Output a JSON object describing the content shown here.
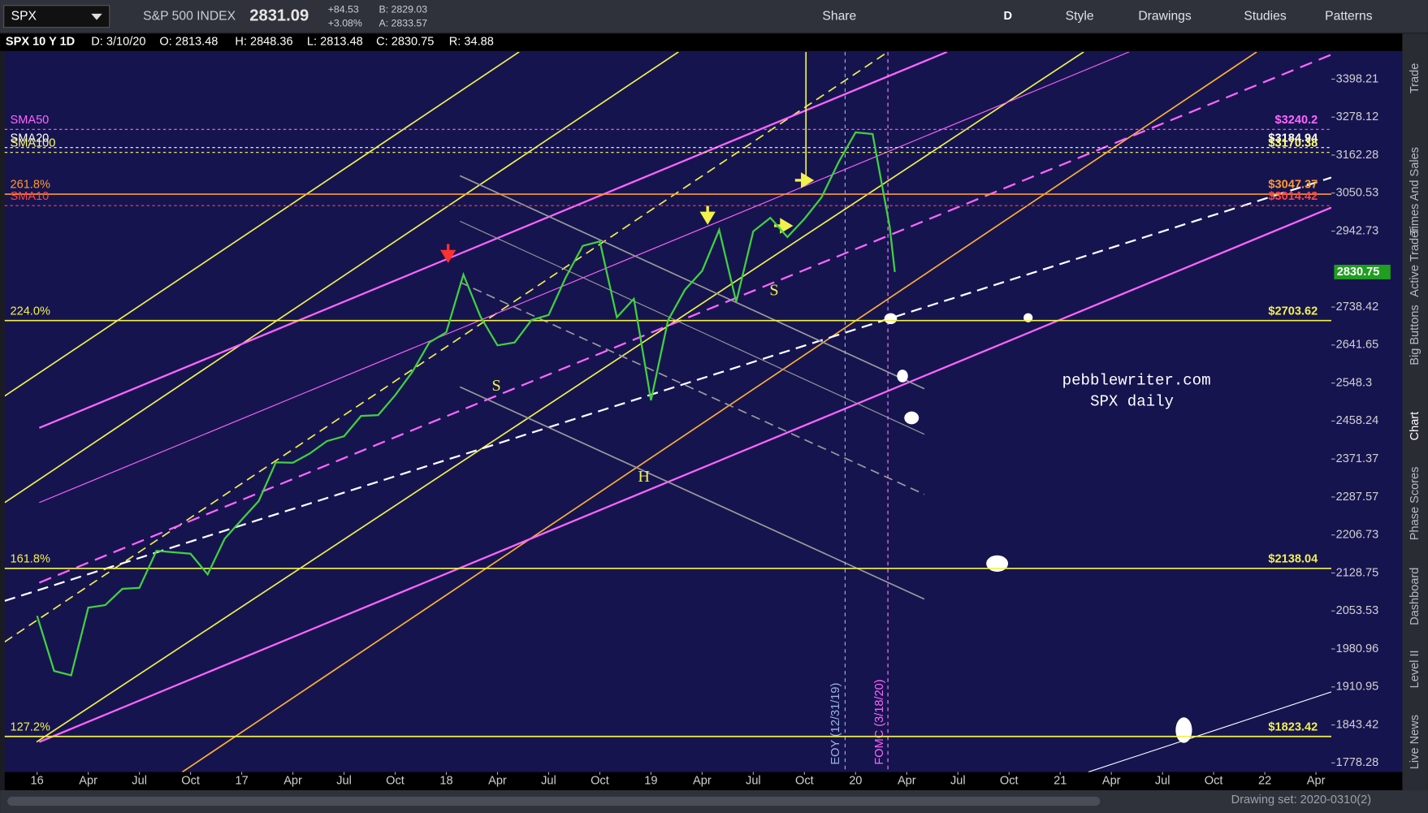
{
  "toolbar": {
    "symbol": "SPX",
    "description": "S&P 500 INDEX",
    "last": "2831.09",
    "net_change": "+84.53",
    "percent_change": "+3.08%",
    "bid": "B: 2829.03",
    "ask": "A: 2833.57",
    "aggregation": "D",
    "buttons": [
      "Share",
      "Style",
      "Drawings",
      "Studies",
      "Patterns"
    ]
  },
  "chart_header": {
    "title": "SPX 10 Y 1D",
    "date": "D: 3/10/20",
    "open": "O: 2813.48",
    "high": "H: 2848.36",
    "low": "L: 2813.48",
    "close": "C: 2830.75",
    "range": "R: 34.88"
  },
  "chart_data": {
    "type": "line",
    "log_scale": true,
    "color": "#3fd23f",
    "x": [
      0,
      1,
      2,
      3,
      4,
      5,
      6,
      7,
      8,
      9,
      10,
      11,
      12,
      13,
      14,
      15,
      16,
      17,
      18,
      19,
      20,
      21,
      22,
      23,
      24,
      25,
      26,
      27,
      28,
      29,
      30,
      31,
      32,
      33,
      34,
      35,
      36,
      37,
      38,
      39,
      40,
      41,
      42,
      43,
      44,
      45,
      46,
      47,
      48,
      49,
      50,
      50.3
    ],
    "values": [
      2044,
      1940,
      1932,
      2060,
      2065,
      2097,
      2099,
      2174,
      2171,
      2168,
      2126,
      2199,
      2239,
      2279,
      2364,
      2363,
      2384,
      2412,
      2423,
      2470,
      2472,
      2519,
      2575,
      2648,
      2674,
      2824,
      2714,
      2641,
      2648,
      2705,
      2718,
      2816,
      2902,
      2914,
      2712,
      2760,
      2507,
      2704,
      2784,
      2834,
      2946,
      2752,
      2942,
      2980,
      2926,
      2977,
      3038,
      3141,
      3231,
      3226,
      2954,
      2831
    ],
    "xlim": [
      -1.9,
      75.9
    ],
    "xticks": [
      {
        "value": 0,
        "label": "16"
      },
      {
        "value": 3,
        "label": "Apr"
      },
      {
        "value": 6,
        "label": "Jul"
      },
      {
        "value": 9,
        "label": "Oct"
      },
      {
        "value": 12,
        "label": "17"
      },
      {
        "value": 15,
        "label": "Apr"
      },
      {
        "value": 18,
        "label": "Jul"
      },
      {
        "value": 21,
        "label": "Oct"
      },
      {
        "value": 24,
        "label": "18"
      },
      {
        "value": 27,
        "label": "Apr"
      },
      {
        "value": 30,
        "label": "Jul"
      },
      {
        "value": 33,
        "label": "Oct"
      },
      {
        "value": 36,
        "label": "19"
      },
      {
        "value": 39,
        "label": "Apr"
      },
      {
        "value": 42,
        "label": "Jul"
      },
      {
        "value": 45,
        "label": "Oct"
      },
      {
        "value": 48,
        "label": "20"
      },
      {
        "value": 51,
        "label": "Apr"
      },
      {
        "value": 54,
        "label": "Jul"
      },
      {
        "value": 57,
        "label": "Oct"
      },
      {
        "value": 60,
        "label": "21"
      },
      {
        "value": 63,
        "label": "Apr"
      },
      {
        "value": 66,
        "label": "Jul"
      },
      {
        "value": 69,
        "label": "Oct"
      },
      {
        "value": 72,
        "label": "22"
      },
      {
        "value": 75,
        "label": "Apr"
      }
    ],
    "ylim": [
      1763,
      3487
    ],
    "yticks": [
      3398.21,
      3278.12,
      3162.28,
      3050.53,
      2942.73,
      2738.42,
      2641.65,
      2548.3,
      2458.24,
      2371.37,
      2287.57,
      2206.73,
      2128.75,
      2053.53,
      1980.96,
      1910.95,
      1843.42,
      1778.28
    ],
    "current_price": 2830.75,
    "levels": [
      {
        "name": "SMA50",
        "value": 3240.2,
        "label": "$3240.2",
        "color": "#ff66ff",
        "style": "dotted"
      },
      {
        "name": "SMA20",
        "value": 3184.94,
        "label": "$3184.94",
        "color": "#ffffff",
        "style": "dotted"
      },
      {
        "name": "SMA100",
        "value": 3170.38,
        "label": "$3170.38",
        "color": "#ffff66",
        "style": "dotted"
      },
      {
        "name": "261.8%",
        "value": 3047.37,
        "label": "$3047.37",
        "color": "#ff9a2e",
        "style": "solid"
      },
      {
        "name": "SMA10",
        "value": 3014.42,
        "label": "$3014.42",
        "color": "#ff4444",
        "style": "dotted"
      },
      {
        "name": "224.0%",
        "value": 2703.62,
        "label": "$2703.62",
        "color": "#f2f24a",
        "style": "solid"
      },
      {
        "name": "161.8%",
        "value": 2138.04,
        "label": "$2138.04",
        "color": "#f2f24a",
        "style": "solid"
      },
      {
        "name": "127.2%",
        "value": 1823.42,
        "label": "$1823.42",
        "color": "#f2f24a",
        "style": "solid"
      }
    ],
    "annotations": {
      "watermark": [
        "pebblewriter.com",
        "SPX daily"
      ],
      "events": [
        "EOY (12/31/19)",
        "FOMC (3/18/20)"
      ],
      "patterns": [
        "S",
        "H",
        "S"
      ]
    }
  },
  "side_tabs": [
    "Trade",
    "Times And Sales",
    "Active Trader",
    "Big Buttons",
    "Chart",
    "Phase Scores",
    "Dashboard",
    "Level II",
    "Live News"
  ],
  "footer": {
    "drawing_set": "Drawing set: 2020-0310(2)"
  }
}
